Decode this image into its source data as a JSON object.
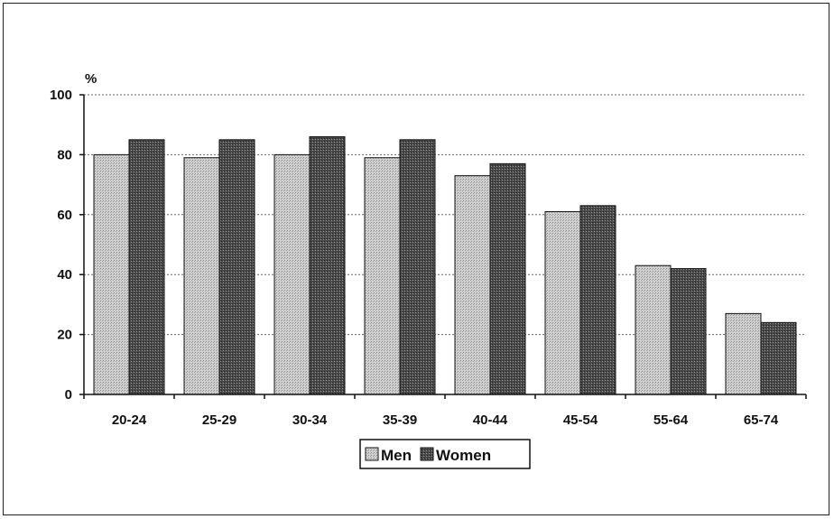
{
  "chart_data": {
    "type": "bar",
    "title": "",
    "xlabel": "",
    "ylabel": "%",
    "ylim": [
      0,
      100
    ],
    "yticks": [
      0,
      20,
      40,
      60,
      80,
      100
    ],
    "grid": true,
    "legend_placement": "bottom-center",
    "categories": [
      "20-24",
      "25-29",
      "30-34",
      "35-39",
      "40-44",
      "45-54",
      "55-64",
      "65-74"
    ],
    "series": [
      {
        "name": "Men",
        "color": "#c9c9c9",
        "values": [
          80,
          79,
          80,
          79,
          73,
          61,
          43,
          27
        ]
      },
      {
        "name": "Women",
        "color": "#555555",
        "values": [
          85,
          85,
          86,
          85,
          77,
          63,
          42,
          24
        ]
      }
    ]
  }
}
